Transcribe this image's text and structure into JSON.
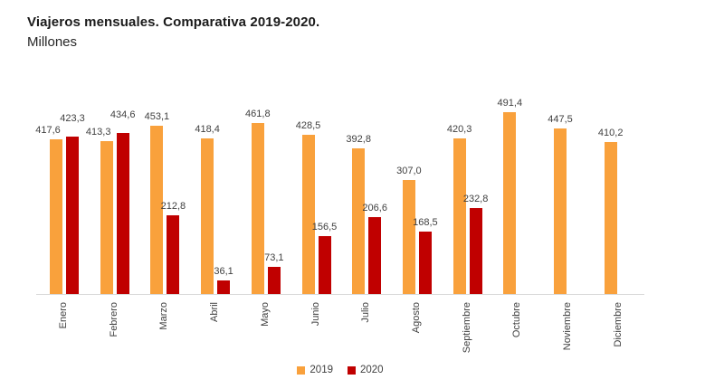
{
  "header": {
    "title": "Viajeros mensuales. Comparativa 2019-2020.",
    "subtitle": "Millones"
  },
  "chart_data": {
    "type": "bar",
    "title": "Viajeros mensuales. Comparativa 2019-2020.",
    "subtitle": "Millones",
    "unit": "Millones",
    "categories": [
      "Enero",
      "Febrero",
      "Marzo",
      "Abril",
      "Mayo",
      "Junio",
      "Julio",
      "Agosto",
      "Septiembre",
      "Octubre",
      "Noviembre",
      "Diciembre"
    ],
    "series": [
      {
        "name": "2019",
        "color": "#F9A13C",
        "values": [
          417.6,
          413.3,
          453.1,
          418.4,
          461.8,
          428.5,
          392.8,
          307.0,
          420.3,
          491.4,
          447.5,
          410.2
        ]
      },
      {
        "name": "2020",
        "color": "#C00000",
        "values": [
          423.3,
          434.6,
          212.8,
          36.1,
          73.1,
          156.5,
          206.6,
          168.5,
          232.8,
          null,
          null,
          null
        ]
      }
    ],
    "data_labels": {
      "2019": [
        "417,6",
        "413,3",
        "453,1",
        "418,4",
        "461,8",
        "428,5",
        "392,8",
        "307,0",
        "420,3",
        "491,4",
        "447,5",
        "410,2"
      ],
      "2020": [
        "423,3",
        "434,6",
        "212,8",
        "36,1",
        "73,1",
        "156,5",
        "206,6",
        "168,5",
        "232,8",
        null,
        null,
        null
      ]
    },
    "ylim": [
      0,
      500
    ],
    "grid": false,
    "y_axis_visible": false,
    "legend_position": "bottom",
    "axis_line_color": "#D9D9D9",
    "label_color": "#404040",
    "decimal_separator": ","
  }
}
